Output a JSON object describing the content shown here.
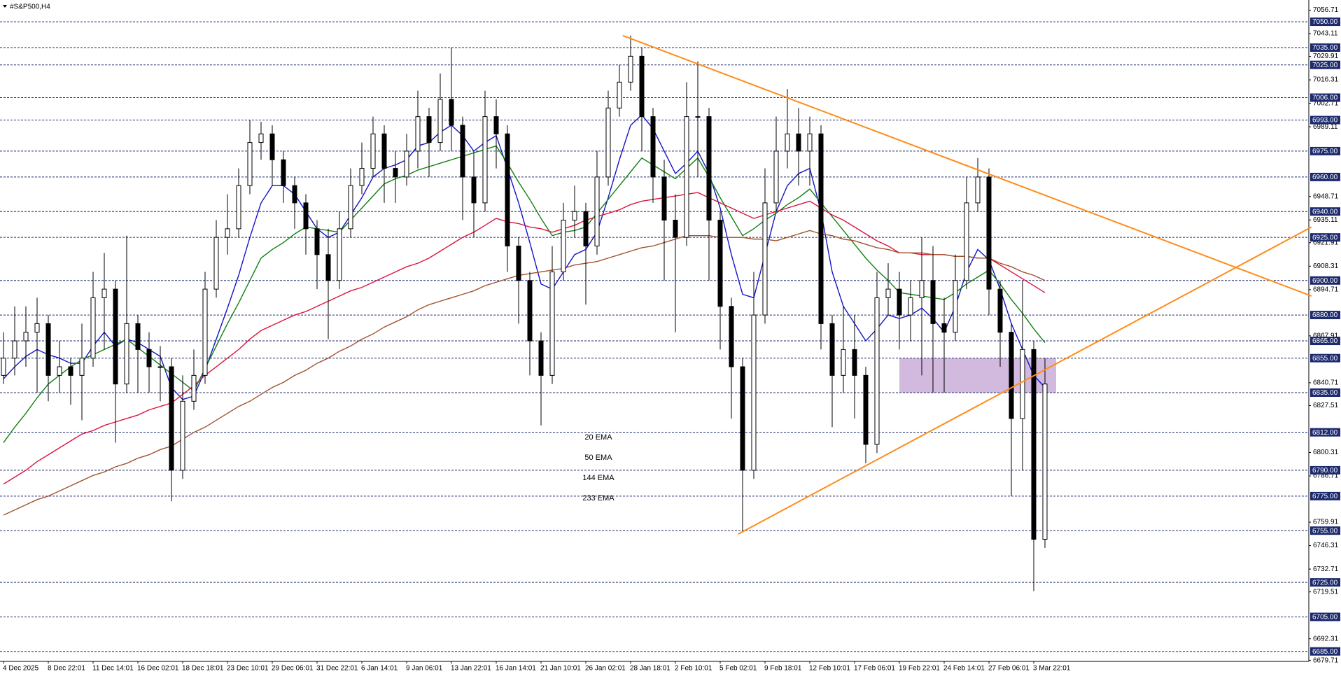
{
  "chart_data": {
    "type": "candlestick",
    "title": "#S&P500,H4",
    "categories": [
      "4 Dec 2025",
      null,
      null,
      null,
      "8 Dec 22:01",
      null,
      null,
      null,
      "11 Dec 14:01",
      null,
      null,
      null,
      "16 Dec 02:01",
      null,
      null,
      null,
      "18 Dec 18:01",
      null,
      null,
      null,
      "23 Dec 10:01",
      null,
      null,
      null,
      "29 Dec 06:01",
      null,
      null,
      null,
      "31 Dec 22:01",
      null,
      null,
      null,
      "6 Jan 14:01",
      null,
      null,
      null,
      "9 Jan 06:01",
      null,
      null,
      null,
      "13 Jan 22:01",
      null,
      null,
      null,
      "16 Jan 14:01",
      null,
      null,
      null,
      "21 Jan 10:01",
      null,
      null,
      null,
      "26 Jan 02:01",
      null,
      null,
      null,
      "28 Jan 18:01",
      null,
      null,
      null,
      "2 Feb 10:01",
      null,
      null,
      null,
      "5 Feb 02:01",
      null,
      null,
      null,
      "9 Feb 18:01",
      null,
      null,
      null,
      "12 Feb 10:01",
      null,
      null,
      null,
      "17 Feb 06:01",
      null,
      null,
      null,
      "19 Feb 22:01",
      null,
      null,
      null,
      "24 Feb 14:01",
      null,
      null,
      null,
      "27 Feb 06:01",
      null,
      null,
      null,
      "3 Mar 22:01",
      null
    ],
    "open": [
      6845,
      6855,
      6865,
      6870,
      6875,
      6845,
      6850,
      6845,
      6855,
      6890,
      6895,
      6840,
      6875,
      6860,
      6850,
      6850,
      6790,
      6830,
      6845,
      6895,
      6925,
      6930,
      6955,
      6980,
      6985,
      6970,
      6955,
      6945,
      6930,
      6915,
      6900,
      6930,
      6955,
      6965,
      6985,
      6965,
      6960,
      6975,
      6995,
      6980,
      7005,
      6990,
      6960,
      6945,
      6995,
      6985,
      6920,
      6900,
      6865,
      6845,
      6905,
      6935,
      6940,
      6920,
      6960,
      7000,
      7015,
      7030,
      6995,
      6960,
      6935,
      6925,
      6995,
      6995,
      6935,
      6885,
      6850,
      6790,
      6880,
      6945,
      6975,
      6985,
      6975,
      6985,
      6875,
      6845,
      6860,
      6845,
      6805,
      6890,
      6895,
      6880,
      6890,
      6900,
      6875,
      6870,
      6900,
      6945,
      6960,
      6895,
      6870,
      6820,
      6860,
      6750
    ],
    "high": [
      6870,
      6885,
      6885,
      6890,
      6880,
      6865,
      6855,
      6875,
      6905,
      6916,
      6900,
      6926,
      6880,
      6870,
      6862,
      6855,
      6845,
      6860,
      6905,
      6935,
      6950,
      6965,
      6993,
      6992,
      6990,
      6975,
      6960,
      6950,
      6935,
      6930,
      6940,
      6965,
      6980,
      6995,
      6990,
      6975,
      6985,
      7010,
      7000,
      7020,
      7035,
      6995,
      6975,
      7010,
      7005,
      6990,
      6925,
      6905,
      6870,
      6920,
      6945,
      6955,
      6945,
      6975,
      7010,
      7025,
      7042,
      7035,
      7000,
      6970,
      6950,
      7015,
      7027,
      7000,
      6940,
      6890,
      6855,
      6905,
      6965,
      6995,
      7011,
      7000,
      6995,
      6990,
      6880,
      6885,
      6880,
      6850,
      6905,
      6910,
      6905,
      6900,
      6925,
      6920,
      6890,
      6915,
      6960,
      6971,
      6965,
      6900,
      6875,
      6900,
      6865,
      6855
    ],
    "low": [
      6840,
      6845,
      6850,
      6835,
      6830,
      6835,
      6828,
      6819,
      6850,
      6860,
      6806,
      6835,
      6835,
      6835,
      6830,
      6772,
      6785,
      6825,
      6840,
      6890,
      6915,
      6925,
      6950,
      6970,
      6955,
      6945,
      6930,
      6915,
      6895,
      6866,
      6895,
      6925,
      6950,
      6960,
      6945,
      6945,
      6955,
      6965,
      6960,
      6975,
      6975,
      6935,
      6925,
      6940,
      6965,
      6905,
      6875,
      6845,
      6816,
      6840,
      6900,
      6925,
      6886,
      6915,
      6955,
      6995,
      7010,
      6975,
      6945,
      6900,
      6870,
      6920,
      6960,
      6900,
      6860,
      6820,
      6754,
      6785,
      6875,
      6940,
      6965,
      6955,
      6955,
      6860,
      6815,
      6835,
      6820,
      6794,
      6800,
      6880,
      6860,
      6865,
      6845,
      6835,
      6835,
      6865,
      6895,
      6940,
      6880,
      6850,
      6775,
      6790,
      6720,
      6745
    ],
    "close": [
      6855,
      6865,
      6870,
      6875,
      6845,
      6850,
      6845,
      6855,
      6890,
      6895,
      6840,
      6875,
      6860,
      6850,
      6850,
      6790,
      6830,
      6845,
      6895,
      6925,
      6930,
      6955,
      6980,
      6985,
      6970,
      6955,
      6945,
      6930,
      6915,
      6900,
      6930,
      6955,
      6965,
      6985,
      6965,
      6960,
      6975,
      6995,
      6980,
      7005,
      6990,
      6960,
      6945,
      6995,
      6985,
      6920,
      6900,
      6865,
      6845,
      6905,
      6935,
      6940,
      6920,
      6960,
      7000,
      7015,
      7030,
      6995,
      6960,
      6935,
      6925,
      6995,
      6995,
      6935,
      6885,
      6850,
      6790,
      6880,
      6945,
      6975,
      6985,
      6975,
      6985,
      6875,
      6845,
      6860,
      6845,
      6805,
      6890,
      6895,
      6880,
      6890,
      6900,
      6875,
      6870,
      6900,
      6945,
      6960,
      6895,
      6870,
      6820,
      6860,
      6750,
      6840
    ],
    "up_color": "#ffffff",
    "down_color": "#000000",
    "wick_color": "#000000",
    "series": [
      {
        "name": "20 EMA",
        "color": "#1414c8",
        "values": [
          6843,
          6850,
          6856,
          6860,
          6857,
          6855,
          6852,
          6852,
          6862,
          6870,
          6862,
          6866,
          6864,
          6860,
          6856,
          6838,
          6831,
          6833,
          6848,
          6866,
          6884,
          6903,
          6925,
          6945,
          6955,
          6955,
          6950,
          6940,
          6930,
          6925,
          6928,
          6938,
          6948,
          6960,
          6965,
          6967,
          6970,
          6978,
          6980,
          6986,
          6990,
          6984,
          6975,
          6980,
          6984,
          6965,
          6945,
          6922,
          6898,
          6895,
          6905,
          6915,
          6918,
          6928,
          6948,
          6970,
          6990,
          6996,
          6988,
          6975,
          6962,
          6968,
          6975,
          6962,
          6942,
          6915,
          6892,
          6890,
          6915,
          6940,
          6955,
          6962,
          6965,
          6940,
          6905,
          6885,
          6875,
          6865,
          6872,
          6880,
          6878,
          6880,
          6884,
          6878,
          6870,
          6885,
          6905,
          6918,
          6912,
          6895,
          6875,
          6860,
          6845,
          6838
        ]
      },
      {
        "name": "50 EMA",
        "color": "#118011",
        "values": [
          6806,
          6815,
          6823,
          6832,
          6840,
          6845,
          6850,
          6854,
          6857,
          6860,
          6863,
          6866,
          6861,
          6856,
          6851,
          6846,
          6841,
          6836,
          6849,
          6862,
          6875,
          6887,
          6900,
          6913,
          6918,
          6922,
          6927,
          6931,
          6930,
          6929,
          6928,
          6935,
          6942,
          6949,
          6956,
          6959,
          6961,
          6964,
          6966,
          6968,
          6970,
          6972,
          6974,
          6976,
          6978,
          6968,
          6957,
          6947,
          6936,
          6926,
          6928,
          6929,
          6931,
          6939,
          6947,
          6955,
          6963,
          6971,
          6967,
          6963,
          6959,
          6965,
          6971,
          6960,
          6948,
          6937,
          6926,
          6930,
          6935,
          6939,
          6944,
          6948,
          6953,
          6945,
          6937,
          6929,
          6921,
          6913,
          6906,
          6900,
          6893,
          6892,
          6891,
          6890,
          6889,
          6893,
          6898,
          6902,
          6906,
          6898,
          6889,
          6881,
          6872,
          6864
        ]
      },
      {
        "name": "144 EMA",
        "color": "#dc143c",
        "values": [
          6782,
          6786,
          6790,
          6795,
          6799,
          6803,
          6807,
          6811,
          6813,
          6816,
          6818,
          6820,
          6822,
          6825,
          6827,
          6829,
          6834,
          6839,
          6845,
          6850,
          6855,
          6860,
          6866,
          6871,
          6874,
          6877,
          6880,
          6882,
          6885,
          6888,
          6891,
          6894,
          6896,
          6899,
          6902,
          6905,
          6908,
          6910,
          6913,
          6917,
          6921,
          6925,
          6928,
          6932,
          6936,
          6934,
          6933,
          6931,
          6930,
          6928,
          6930,
          6932,
          6935,
          6937,
          6939,
          6941,
          6944,
          6946,
          6947,
          6948,
          6949,
          6950,
          6951,
          6948,
          6945,
          6942,
          6939,
          6936,
          6938,
          6940,
          6942,
          6944,
          6946,
          6942,
          6938,
          6935,
          6931,
          6927,
          6923,
          6920,
          6916,
          6916,
          6915,
          6915,
          6915,
          6914,
          6914,
          6913,
          6913,
          6909,
          6905,
          6901,
          6897,
          6893
        ]
      },
      {
        "name": "233 EMA",
        "color": "#a0522d",
        "values": [
          6764,
          6767,
          6770,
          6773,
          6775,
          6778,
          6781,
          6784,
          6787,
          6789,
          6792,
          6794,
          6797,
          6799,
          6802,
          6804,
          6808,
          6812,
          6815,
          6819,
          6823,
          6827,
          6830,
          6834,
          6838,
          6841,
          6845,
          6848,
          6852,
          6855,
          6859,
          6862,
          6866,
          6869,
          6873,
          6876,
          6879,
          6883,
          6886,
          6888,
          6890,
          6892,
          6894,
          6897,
          6899,
          6901,
          6903,
          6904,
          6905,
          6906,
          6907,
          6909,
          6910,
          6911,
          6913,
          6915,
          6917,
          6919,
          6920,
          6922,
          6924,
          6926,
          6926,
          6926,
          6925,
          6925,
          6925,
          6924,
          6924,
          6923,
          6925,
          6927,
          6929,
          6927,
          6926,
          6924,
          6923,
          6921,
          6919,
          6918,
          6916,
          6916,
          6916,
          6915,
          6915,
          6914,
          6914,
          6913,
          6913,
          6910,
          6908,
          6905,
          6903,
          6900
        ]
      }
    ],
    "ylim": [
      6679.2,
      7062.2
    ],
    "yticks": [
      7056.71,
      7043.11,
      7029.91,
      7016.31,
      7002.71,
      6989.11,
      6948.71,
      6935.11,
      6921.91,
      6908.31,
      6894.71,
      6867.91,
      6840.71,
      6827.51,
      6800.31,
      6786.71,
      6759.91,
      6746.31,
      6732.71,
      6719.51,
      6692.31,
      6679.71
    ],
    "levels": [
      {
        "value": 7050,
        "label": "7050.00"
      },
      {
        "value": 7035,
        "label": "7035.00"
      },
      {
        "value": 7025,
        "label": "7025.00"
      },
      {
        "value": 7006,
        "label": "7006.00"
      },
      {
        "value": 6993,
        "label": "6993.00"
      },
      {
        "value": 6975,
        "label": "6975.00"
      },
      {
        "value": 6960,
        "label": "6960.00"
      },
      {
        "value": 6940,
        "label": "6940.00"
      },
      {
        "value": 6925,
        "label": "6925.00"
      },
      {
        "value": 6900,
        "label": "6900.00"
      },
      {
        "value": 6880,
        "label": "6880.00"
      },
      {
        "value": 6865,
        "label": "6865.00"
      },
      {
        "value": 6855,
        "label": "6855.00"
      },
      {
        "value": 6835,
        "label": "6835.00"
      },
      {
        "value": 6812,
        "label": "6812.00"
      },
      {
        "value": 6790,
        "label": "6790.00"
      },
      {
        "value": 6775,
        "label": "6775.00"
      },
      {
        "value": 6755,
        "label": "6755.00"
      },
      {
        "value": 6725,
        "label": "6725.00"
      },
      {
        "value": 6705,
        "label": "6705.00"
      },
      {
        "value": 6685,
        "label": "6685.00"
      }
    ],
    "level_color": "#1c2a6e",
    "trendline_color": "#ff8c1a",
    "trendlines": [
      {
        "start": {
          "index": 55.3,
          "price": 7042
        },
        "end": {
          "index": 116.8,
          "price": 6891
        }
      },
      {
        "start": {
          "index": 65.6,
          "price": 6753
        },
        "end": {
          "index": 116.8,
          "price": 6931
        }
      }
    ],
    "zone": {
      "from_index": 80,
      "to_index": 94,
      "low": 6835,
      "high": 6855,
      "color": "#c9aed8"
    }
  }
}
